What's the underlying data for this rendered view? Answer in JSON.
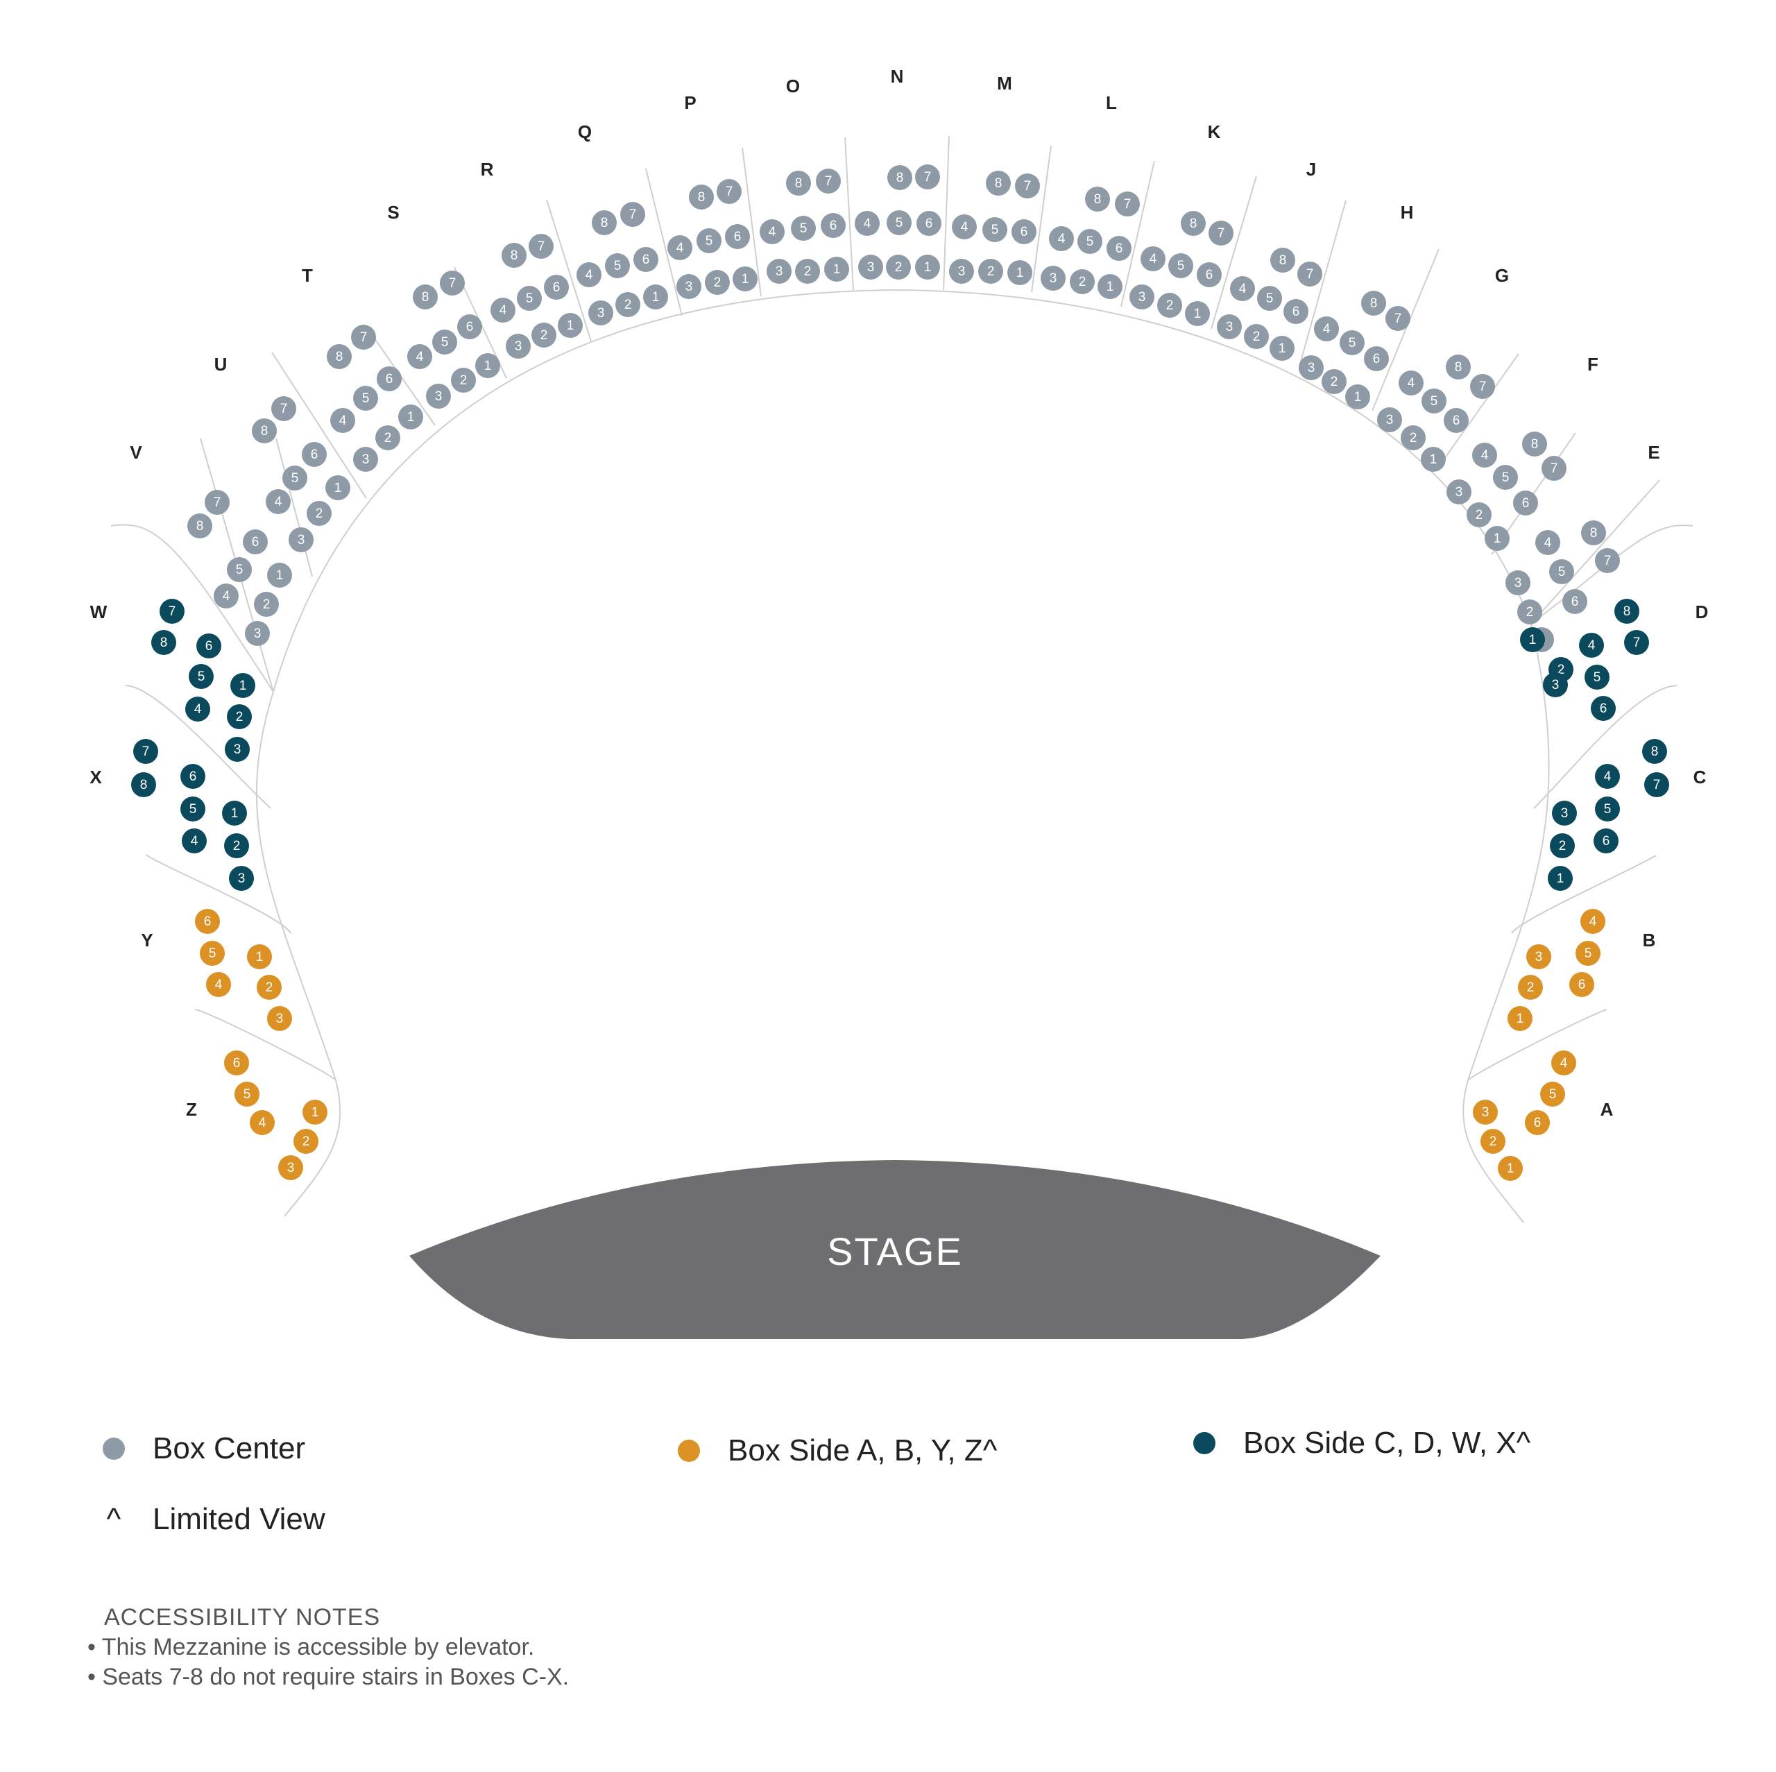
{
  "colors": {
    "box_center": "#8e9aa5",
    "box_side_ab": "#dc9125",
    "box_side_cd": "#0b4a5c",
    "stage": "#6e6d70",
    "divider": "#cfcfcf"
  },
  "stage": {
    "label": "STAGE"
  },
  "boxes": [
    {
      "id": "V",
      "label": "V",
      "category": "box_center"
    },
    {
      "id": "U",
      "label": "U",
      "category": "box_center"
    },
    {
      "id": "T",
      "label": "T",
      "category": "box_center"
    },
    {
      "id": "S",
      "label": "S",
      "category": "box_center"
    },
    {
      "id": "R",
      "label": "R",
      "category": "box_center"
    },
    {
      "id": "Q",
      "label": "Q",
      "category": "box_center"
    },
    {
      "id": "P",
      "label": "P",
      "category": "box_center"
    },
    {
      "id": "O",
      "label": "O",
      "category": "box_center"
    },
    {
      "id": "N",
      "label": "N",
      "category": "box_center"
    },
    {
      "id": "M",
      "label": "M",
      "category": "box_center"
    },
    {
      "id": "L",
      "label": "L",
      "category": "box_center"
    },
    {
      "id": "K",
      "label": "K",
      "category": "box_center"
    },
    {
      "id": "J",
      "label": "J",
      "category": "box_center"
    },
    {
      "id": "H",
      "label": "H",
      "category": "box_center"
    },
    {
      "id": "G",
      "label": "G",
      "category": "box_center"
    },
    {
      "id": "F",
      "label": "F",
      "category": "box_center"
    },
    {
      "id": "E",
      "label": "E",
      "category": "box_center"
    },
    {
      "id": "W",
      "label": "W",
      "category": "box_side_cd"
    },
    {
      "id": "X",
      "label": "X",
      "category": "box_side_cd"
    },
    {
      "id": "D",
      "label": "D",
      "category": "box_side_cd"
    },
    {
      "id": "C",
      "label": "C",
      "category": "box_side_cd"
    },
    {
      "id": "Y",
      "label": "Y",
      "category": "box_side_ab"
    },
    {
      "id": "Z",
      "label": "Z",
      "category": "box_side_ab"
    },
    {
      "id": "B",
      "label": "B",
      "category": "box_side_ab"
    },
    {
      "id": "A",
      "label": "A",
      "category": "box_side_ab"
    }
  ],
  "seat_numbers": {
    "center": [
      "1",
      "2",
      "3",
      "4",
      "5",
      "6",
      "7",
      "8"
    ],
    "side_cd": [
      "1",
      "2",
      "3",
      "4",
      "5",
      "6",
      "7",
      "8"
    ],
    "side_ab": [
      "1",
      "2",
      "3",
      "4",
      "5",
      "6"
    ]
  },
  "legend": {
    "box_center": "Box Center",
    "box_side_ab": "Box Side A, B, Y, Z^",
    "box_side_cd": "Box Side C, D, W, X^",
    "limited_symbol": "^",
    "limited_view": "Limited View"
  },
  "accessibility": {
    "title": "ACCESSIBILITY NOTES",
    "notes": [
      "• This Mezzanine is accessible by elevator.",
      "• Seats 7-8 do not require stairs in Boxes C-X."
    ]
  }
}
